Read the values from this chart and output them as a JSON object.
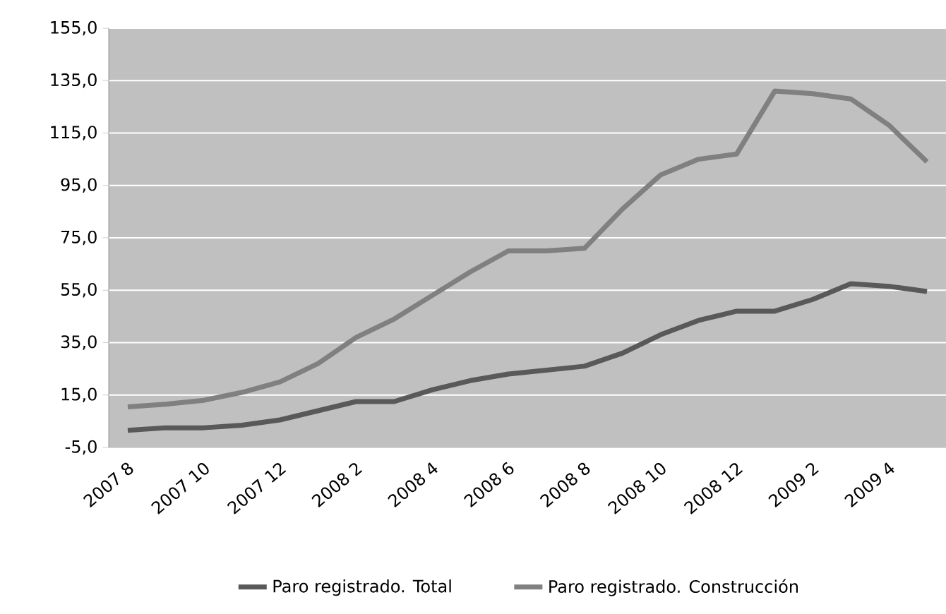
{
  "chart_data": {
    "type": "line",
    "categories": [
      "2007 8",
      null,
      "2007 10",
      null,
      "2007 12",
      null,
      "2008 2",
      null,
      "2008 4",
      null,
      "2008 6",
      null,
      "2008 8",
      null,
      "2008 10",
      null,
      "2008 12",
      null,
      "2009 2",
      null,
      "2009 4",
      null
    ],
    "series": [
      {
        "name": "Paro registrado. Total",
        "color": "#595959",
        "values": [
          1.5,
          2.5,
          2.5,
          3.5,
          5.5,
          9,
          12.5,
          12.5,
          17,
          20.5,
          23,
          24.5,
          26,
          31,
          38,
          43.5,
          47,
          47,
          51.5,
          57.5,
          56.5,
          54.5
        ]
      },
      {
        "name": "Paro registrado. Construcción",
        "color": "#808080",
        "values": [
          10.5,
          11.5,
          13,
          16,
          20,
          27,
          37,
          44,
          53,
          62,
          70,
          70,
          71,
          86,
          99,
          105,
          107,
          131,
          130,
          128,
          118,
          104
        ]
      }
    ],
    "ylim": [
      -5,
      155
    ],
    "yticks": [
      {
        "value": -5,
        "label": "-5,0"
      },
      {
        "value": 15,
        "label": "15,0"
      },
      {
        "value": 35,
        "label": "35,0"
      },
      {
        "value": 55,
        "label": "55,0"
      },
      {
        "value": 75,
        "label": "75,0"
      },
      {
        "value": 95,
        "label": "95,0"
      },
      {
        "value": 115,
        "label": "115,0"
      },
      {
        "value": 135,
        "label": "135,0"
      },
      {
        "value": 155,
        "label": "155,0"
      }
    ],
    "grid": "y",
    "legend": "bottom",
    "marker": "none",
    "line_style": "solid"
  }
}
